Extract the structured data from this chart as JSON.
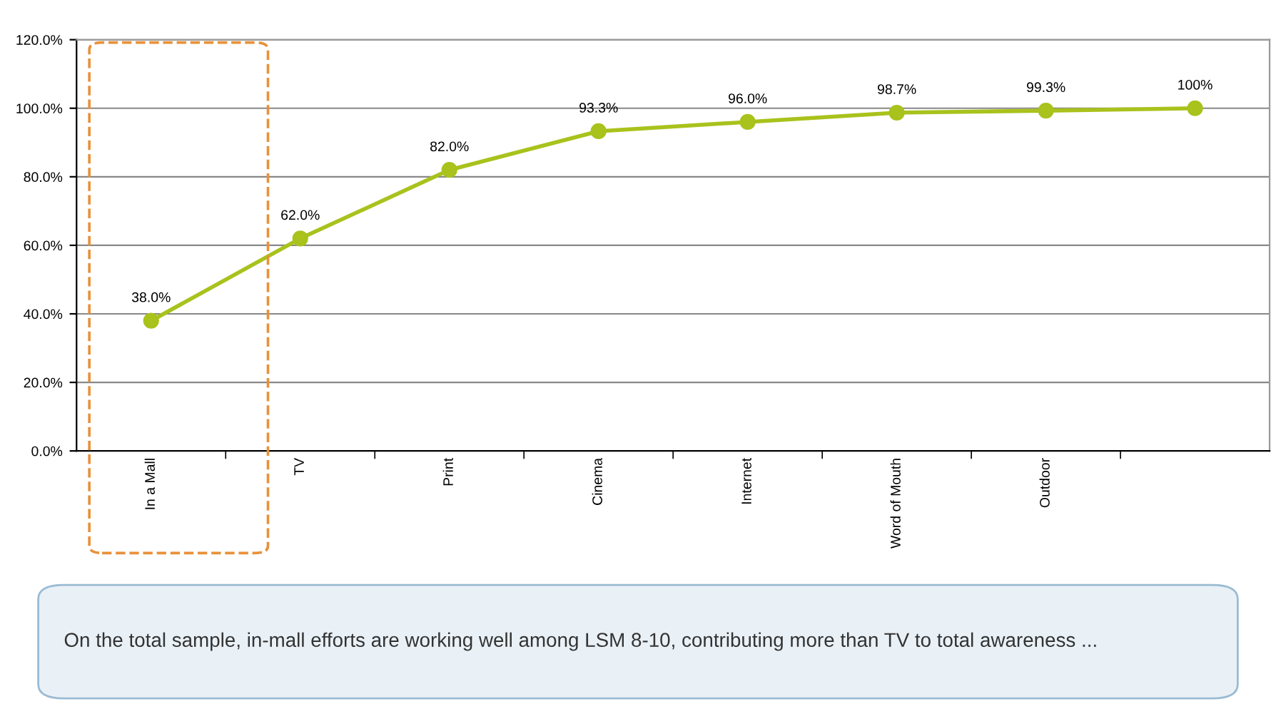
{
  "chart_data": {
    "type": "line",
    "categories": [
      "In a Mall",
      "TV",
      "Print",
      "Cinema",
      "Internet",
      "Word of Mouth",
      "Outdoor",
      null
    ],
    "series": [
      {
        "color": "#a9c21c",
        "values": [
          38.0,
          62.0,
          82.0,
          93.3,
          96.0,
          98.7,
          99.3,
          100
        ],
        "value_labels": [
          "38.0%",
          "62.0%",
          "82.0%",
          "93.3%",
          "96.0%",
          "98.7%",
          "99.3%",
          "100%"
        ]
      }
    ],
    "ylim": [
      0,
      120
    ],
    "yticks": [
      {
        "value": 0,
        "label": "0.0%"
      },
      {
        "value": 20,
        "label": "20.0%"
      },
      {
        "value": 40,
        "label": "40.0%"
      },
      {
        "value": 60,
        "label": "60.0%"
      },
      {
        "value": 80,
        "label": "80.0%"
      },
      {
        "value": 100,
        "label": "100.0%"
      },
      {
        "value": 120,
        "label": "120.0%"
      }
    ],
    "grid": "y",
    "marker": "circle",
    "line_style": "solid",
    "annotations": [
      "On the total sample, in-mall efforts are working well among LSM 8-10, contributing more than TV to total awareness ..."
    ]
  }
}
